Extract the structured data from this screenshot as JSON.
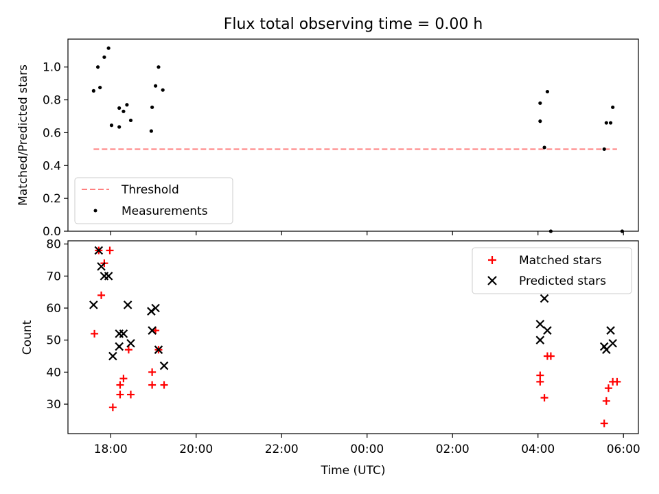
{
  "chart_data": [
    {
      "type": "scatter",
      "title": "Flux total observing time = 0.00 h",
      "xlabel": "",
      "ylabel": "Matched/Predicted stars",
      "xlim_hours": [
        17.0,
        30.35
      ],
      "ylim": [
        0.0,
        1.17
      ],
      "yticks": [
        "0.0",
        "0.2",
        "0.4",
        "0.6",
        "0.8",
        "1.0"
      ],
      "legend_position": "lower-left",
      "grid": false,
      "threshold": {
        "name": "Threshold",
        "y": 0.5,
        "x_start": 17.6,
        "x_end": 29.85,
        "color": "#ff8080"
      },
      "series": [
        {
          "name": "Measurements",
          "color": "#000000",
          "marker": "dot",
          "points": [
            [
              17.6,
              0.855
            ],
            [
              17.7,
              1.0
            ],
            [
              17.75,
              0.875
            ],
            [
              17.85,
              1.06
            ],
            [
              17.95,
              1.115
            ],
            [
              18.02,
              0.645
            ],
            [
              18.2,
              0.75
            ],
            [
              18.2,
              0.635
            ],
            [
              18.3,
              0.73
            ],
            [
              18.38,
              0.77
            ],
            [
              18.47,
              0.675
            ],
            [
              18.95,
              0.61
            ],
            [
              18.97,
              0.755
            ],
            [
              19.05,
              0.885
            ],
            [
              19.12,
              1.0
            ],
            [
              19.22,
              0.86
            ],
            [
              28.05,
              0.78
            ],
            [
              28.05,
              0.67
            ],
            [
              28.15,
              0.51
            ],
            [
              28.22,
              0.85
            ],
            [
              28.3,
              0.0
            ],
            [
              29.55,
              0.5
            ],
            [
              29.6,
              0.66
            ],
            [
              29.7,
              0.66
            ],
            [
              29.75,
              0.755
            ],
            [
              29.97,
              0.0
            ]
          ]
        }
      ]
    },
    {
      "type": "scatter",
      "title": "",
      "xlabel": "Time (UTC)",
      "ylabel": "Count",
      "xlim_hours": [
        17.0,
        30.35
      ],
      "ylim": [
        20.8,
        81.0
      ],
      "yticks": [
        "30",
        "40",
        "50",
        "60",
        "70",
        "80"
      ],
      "xticks": [
        {
          "hour": 18,
          "label": "18:00"
        },
        {
          "hour": 20,
          "label": "20:00"
        },
        {
          "hour": 22,
          "label": "22:00"
        },
        {
          "hour": 24,
          "label": "00:00"
        },
        {
          "hour": 26,
          "label": "02:00"
        },
        {
          "hour": 28,
          "label": "04:00"
        },
        {
          "hour": 30,
          "label": "06:00"
        }
      ],
      "legend_position": "upper-right",
      "grid": false,
      "series": [
        {
          "name": "Matched stars",
          "color": "#ff0000",
          "marker": "plus",
          "points": [
            [
              17.62,
              52
            ],
            [
              17.72,
              78
            ],
            [
              17.85,
              74
            ],
            [
              17.98,
              78
            ],
            [
              17.78,
              64
            ],
            [
              18.05,
              29
            ],
            [
              18.22,
              36
            ],
            [
              18.22,
              33
            ],
            [
              18.3,
              38
            ],
            [
              18.42,
              47
            ],
            [
              18.47,
              33
            ],
            [
              18.97,
              40
            ],
            [
              18.97,
              36
            ],
            [
              19.05,
              53
            ],
            [
              19.12,
              47
            ],
            [
              19.25,
              36
            ],
            [
              28.05,
              39
            ],
            [
              28.05,
              37
            ],
            [
              28.15,
              32
            ],
            [
              28.22,
              45
            ],
            [
              28.3,
              45
            ],
            [
              29.55,
              24
            ],
            [
              29.6,
              31
            ],
            [
              29.65,
              35
            ],
            [
              29.75,
              37
            ],
            [
              29.85,
              37
            ]
          ]
        },
        {
          "name": "Predicted stars",
          "color": "#000000",
          "marker": "x",
          "points": [
            [
              17.6,
              61
            ],
            [
              17.72,
              78
            ],
            [
              17.78,
              73
            ],
            [
              17.85,
              70
            ],
            [
              17.95,
              70
            ],
            [
              18.05,
              45
            ],
            [
              18.2,
              52
            ],
            [
              18.2,
              48
            ],
            [
              18.3,
              52
            ],
            [
              18.4,
              61
            ],
            [
              18.47,
              49
            ],
            [
              18.95,
              59
            ],
            [
              18.97,
              53
            ],
            [
              19.05,
              60
            ],
            [
              19.12,
              47
            ],
            [
              19.25,
              42
            ],
            [
              28.05,
              55
            ],
            [
              28.05,
              50
            ],
            [
              28.15,
              63
            ],
            [
              28.22,
              53
            ],
            [
              29.55,
              48
            ],
            [
              29.6,
              47
            ],
            [
              29.7,
              53
            ],
            [
              29.75,
              49
            ]
          ]
        }
      ]
    }
  ]
}
